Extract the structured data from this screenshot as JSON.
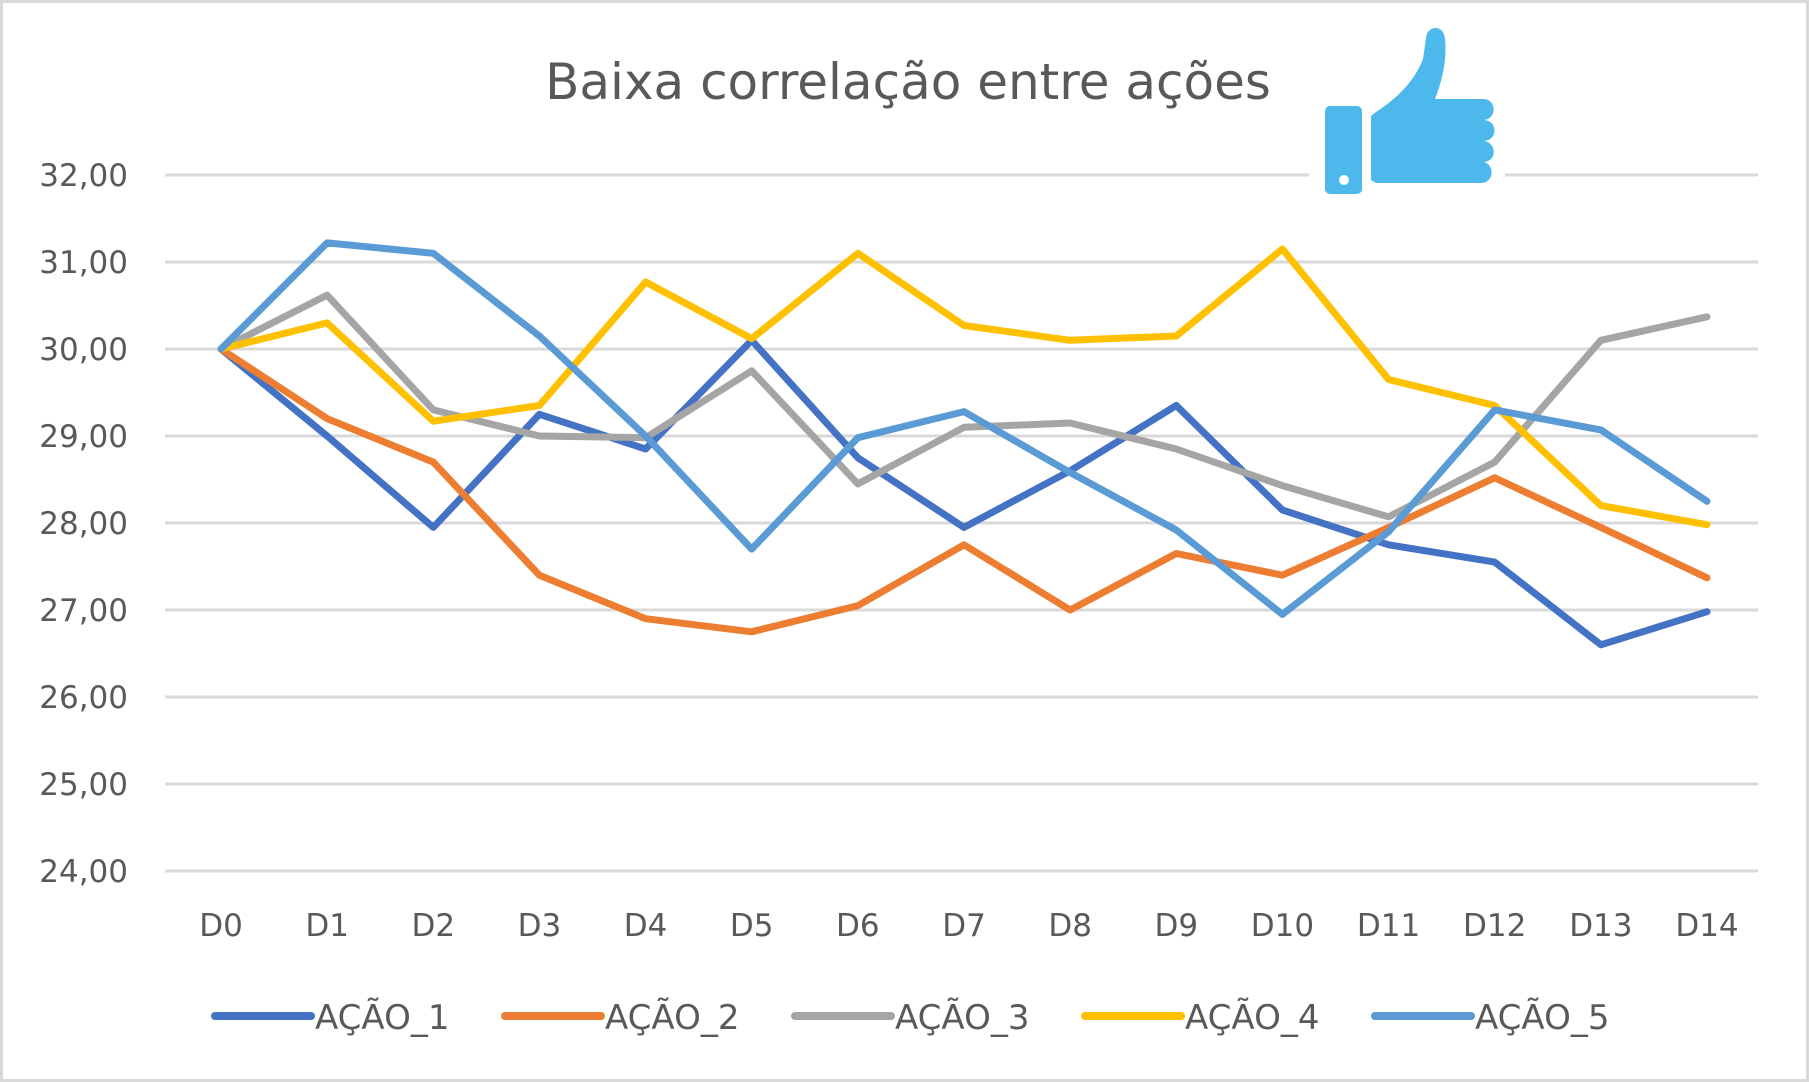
{
  "chart_data": {
    "type": "line",
    "title": "Baixa correlação entre ações",
    "xlabel": "",
    "ylabel": "",
    "ylim": [
      24,
      32
    ],
    "y_ticks": [
      "24,00",
      "25,00",
      "26,00",
      "27,00",
      "28,00",
      "29,00",
      "30,00",
      "31,00",
      "32,00"
    ],
    "categories": [
      "D0",
      "D1",
      "D2",
      "D3",
      "D4",
      "D5",
      "D6",
      "D7",
      "D8",
      "D9",
      "D10",
      "D11",
      "D12",
      "D13",
      "D14"
    ],
    "grid": true,
    "legend_position": "bottom",
    "series": [
      {
        "name": "AÇÃO_1",
        "color": "#4472C4",
        "values": [
          30.0,
          29.0,
          27.95,
          29.25,
          28.85,
          30.1,
          28.75,
          27.95,
          28.6,
          29.35,
          28.15,
          27.75,
          27.55,
          26.6,
          26.98
        ]
      },
      {
        "name": "AÇÃO_2",
        "color": "#ED7D31",
        "values": [
          30.0,
          29.2,
          28.7,
          27.4,
          26.9,
          26.75,
          27.05,
          27.75,
          27.0,
          27.65,
          27.4,
          27.95,
          28.52,
          27.95,
          27.37
        ]
      },
      {
        "name": "AÇÃO_3",
        "color": "#A5A5A5",
        "values": [
          30.0,
          30.62,
          29.3,
          29.0,
          28.98,
          29.75,
          28.45,
          29.1,
          29.15,
          28.85,
          28.43,
          28.07,
          28.7,
          30.1,
          30.37
        ]
      },
      {
        "name": "AÇÃO_4",
        "color": "#FFC000",
        "values": [
          30.0,
          30.3,
          29.17,
          29.35,
          30.77,
          30.12,
          31.1,
          30.27,
          30.1,
          30.15,
          31.15,
          29.65,
          29.35,
          28.2,
          27.98
        ]
      },
      {
        "name": "AÇÃO_5",
        "color": "#5B9BD5",
        "values": [
          30.0,
          31.22,
          31.1,
          30.15,
          29.0,
          27.7,
          28.98,
          29.28,
          28.58,
          27.92,
          26.95,
          27.9,
          29.3,
          29.07,
          28.25
        ]
      }
    ]
  },
  "decoration": {
    "icon": "thumbs-up-icon",
    "icon_color": "#4DB8EC"
  }
}
